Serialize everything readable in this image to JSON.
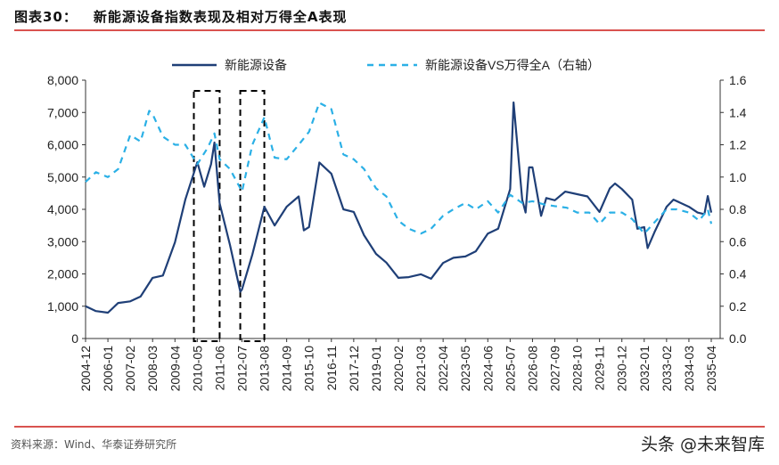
{
  "header": {
    "figure_no": "图表30：",
    "title": "新能源设备指数表现及相对万得全A表现"
  },
  "footer": {
    "source": "资料来源：Wind、华泰证券研究所",
    "watermark": "头条 @未来智库"
  },
  "chart_data": {
    "type": "line",
    "title": "新能源设备指数表现及相对万得全A表现",
    "x_ticks": [
      "2004-12",
      "2006-01",
      "2007-02",
      "2008-03",
      "2009-04",
      "2010-05",
      "2011-06",
      "2012-07",
      "2013-08",
      "2014-09",
      "2015-10",
      "2016-11",
      "2017-12",
      "2019-01",
      "2020-02",
      "2021-03",
      "2022-04",
      "2023-05",
      "2024-06",
      "2025-07",
      "2026-08",
      "2027-09",
      "2028-10",
      "2029-11",
      "2030-12",
      "2032-01",
      "2033-02",
      "2034-03",
      "2035-04"
    ],
    "y_left": {
      "min": 0,
      "max": 8000,
      "ticks": [
        "0",
        "1,000",
        "2,000",
        "3,000",
        "4,000",
        "5,000",
        "6,000",
        "7,000",
        "8,000"
      ]
    },
    "y_right": {
      "min": 0,
      "max": 1.6,
      "ticks": [
        "0.0",
        "0.2",
        "0.4",
        "0.6",
        "0.8",
        "1.0",
        "1.2",
        "1.4",
        "1.6"
      ]
    },
    "legend_position": "top",
    "grid": false,
    "highlight_ranges": [
      [
        "2010-03",
        "2011-06"
      ],
      [
        "2012-06",
        "2013-08"
      ]
    ],
    "colors": {
      "series1": "#1f3f77",
      "series2": "#2bb0e6",
      "rule": "#d9534f"
    },
    "series": [
      {
        "name": "新能源设备",
        "axis": "left",
        "style": "solid",
        "points": [
          [
            "2004-12",
            1000
          ],
          [
            "2005-06",
            850
          ],
          [
            "2006-01",
            800
          ],
          [
            "2006-07",
            1100
          ],
          [
            "2007-02",
            1150
          ],
          [
            "2007-08",
            1300
          ],
          [
            "2008-03",
            1880
          ],
          [
            "2008-09",
            1950
          ],
          [
            "2009-04",
            2980
          ],
          [
            "2009-10",
            4300
          ],
          [
            "2010-05",
            5460
          ],
          [
            "2010-09",
            4700
          ],
          [
            "2011-01",
            5400
          ],
          [
            "2011-03",
            6070
          ],
          [
            "2011-06",
            4190
          ],
          [
            "2011-12",
            2900
          ],
          [
            "2012-06",
            1450
          ],
          [
            "2012-07",
            1520
          ],
          [
            "2013-01",
            2600
          ],
          [
            "2013-08",
            4080
          ],
          [
            "2014-02",
            3500
          ],
          [
            "2014-09",
            4080
          ],
          [
            "2015-04",
            4400
          ],
          [
            "2015-07",
            3350
          ],
          [
            "2015-10",
            3450
          ],
          [
            "2016-04",
            5450
          ],
          [
            "2016-11",
            5100
          ],
          [
            "2017-06",
            4000
          ],
          [
            "2017-12",
            3920
          ],
          [
            "2018-06",
            3200
          ],
          [
            "2019-01",
            2620
          ],
          [
            "2019-07",
            2350
          ],
          [
            "2020-02",
            1880
          ],
          [
            "2020-08",
            1900
          ],
          [
            "2021-03",
            1990
          ],
          [
            "2021-09",
            1850
          ],
          [
            "2022-04",
            2340
          ],
          [
            "2022-10",
            2500
          ],
          [
            "2023-05",
            2540
          ],
          [
            "2023-11",
            2700
          ],
          [
            "2024-06",
            3250
          ],
          [
            "2024-12",
            3400
          ],
          [
            "2025-07",
            4630
          ],
          [
            "2025-09",
            7310
          ],
          [
            "2026-02",
            4300
          ],
          [
            "2026-04",
            3900
          ],
          [
            "2026-06",
            5300
          ],
          [
            "2026-08",
            5300
          ],
          [
            "2027-01",
            3800
          ],
          [
            "2027-04",
            4350
          ],
          [
            "2027-09",
            4280
          ],
          [
            "2028-03",
            4550
          ],
          [
            "2028-10",
            4470
          ],
          [
            "2029-04",
            4400
          ],
          [
            "2029-11",
            3920
          ],
          [
            "2030-05",
            4650
          ],
          [
            "2030-08",
            4800
          ],
          [
            "2030-12",
            4630
          ],
          [
            "2031-06",
            4300
          ],
          [
            "2031-09",
            3400
          ],
          [
            "2032-01",
            3450
          ],
          [
            "2032-03",
            2800
          ],
          [
            "2032-07",
            3300
          ],
          [
            "2033-02",
            4080
          ],
          [
            "2033-06",
            4300
          ],
          [
            "2034-03",
            4080
          ],
          [
            "2034-08",
            3900
          ],
          [
            "2034-12",
            3850
          ],
          [
            "2035-02",
            4410
          ],
          [
            "2035-04",
            3900
          ]
        ]
      },
      {
        "name": "新能源设备VS万得全A（右轴）",
        "axis": "right",
        "style": "dashed",
        "points": [
          [
            "2004-12",
            0.97
          ],
          [
            "2005-06",
            1.03
          ],
          [
            "2006-01",
            1.0
          ],
          [
            "2006-07",
            1.05
          ],
          [
            "2007-02",
            1.26
          ],
          [
            "2007-08",
            1.22
          ],
          [
            "2008-01",
            1.41
          ],
          [
            "2008-03",
            1.39
          ],
          [
            "2008-09",
            1.25
          ],
          [
            "2009-04",
            1.2
          ],
          [
            "2009-10",
            1.2
          ],
          [
            "2010-05",
            1.08
          ],
          [
            "2010-11",
            1.18
          ],
          [
            "2011-03",
            1.27
          ],
          [
            "2011-06",
            1.11
          ],
          [
            "2011-12",
            1.05
          ],
          [
            "2012-06",
            0.93
          ],
          [
            "2012-07",
            0.91
          ],
          [
            "2013-01",
            1.2
          ],
          [
            "2013-08",
            1.37
          ],
          [
            "2014-02",
            1.12
          ],
          [
            "2014-09",
            1.11
          ],
          [
            "2015-04",
            1.2
          ],
          [
            "2015-10",
            1.28
          ],
          [
            "2016-04",
            1.46
          ],
          [
            "2016-11",
            1.42
          ],
          [
            "2017-06",
            1.14
          ],
          [
            "2017-12",
            1.11
          ],
          [
            "2018-06",
            1.05
          ],
          [
            "2019-01",
            0.93
          ],
          [
            "2019-07",
            0.88
          ],
          [
            "2020-02",
            0.73
          ],
          [
            "2020-08",
            0.68
          ],
          [
            "2021-03",
            0.65
          ],
          [
            "2021-09",
            0.68
          ],
          [
            "2022-04",
            0.76
          ],
          [
            "2022-10",
            0.8
          ],
          [
            "2023-05",
            0.84
          ],
          [
            "2023-11",
            0.8
          ],
          [
            "2024-06",
            0.85
          ],
          [
            "2024-12",
            0.78
          ],
          [
            "2025-07",
            0.89
          ],
          [
            "2026-02",
            0.84
          ],
          [
            "2026-08",
            0.85
          ],
          [
            "2027-03",
            0.83
          ],
          [
            "2027-09",
            0.82
          ],
          [
            "2028-04",
            0.81
          ],
          [
            "2028-10",
            0.78
          ],
          [
            "2029-05",
            0.78
          ],
          [
            "2029-11",
            0.71
          ],
          [
            "2030-05",
            0.78
          ],
          [
            "2030-12",
            0.78
          ],
          [
            "2031-06",
            0.74
          ],
          [
            "2032-01",
            0.65
          ],
          [
            "2032-07",
            0.72
          ],
          [
            "2033-02",
            0.8
          ],
          [
            "2033-08",
            0.8
          ],
          [
            "2034-03",
            0.78
          ],
          [
            "2034-09",
            0.73
          ],
          [
            "2035-02",
            0.8
          ],
          [
            "2035-04",
            0.71
          ]
        ]
      }
    ]
  }
}
